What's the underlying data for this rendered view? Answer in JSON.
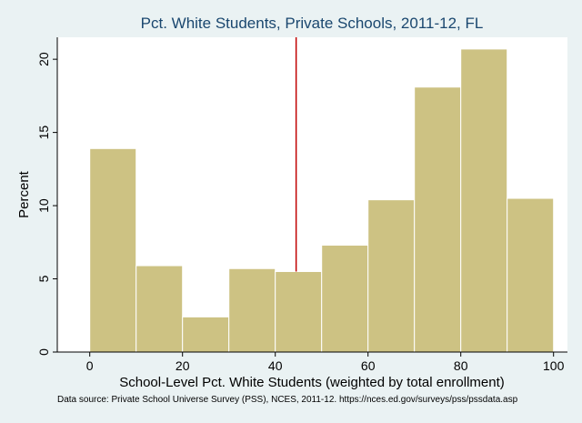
{
  "chart_data": {
    "type": "bar",
    "title": "Pct. White Students, Private Schools, 2011-12, FL",
    "xlabel": "School-Level Pct. White Students (weighted by total enrollment)",
    "ylabel": "Percent",
    "note": "Data source: Private School Universe Survey (PSS), NCES, 2011-12. https://nces.ed.gov/surveys/pss/pssdata.asp",
    "bin_edges": [
      0,
      10,
      20,
      30,
      40,
      50,
      60,
      70,
      80,
      90,
      100
    ],
    "values": [
      13.9,
      5.9,
      2.4,
      5.7,
      5.5,
      7.3,
      10.4,
      18.1,
      20.7,
      10.5
    ],
    "xlim": [
      -7,
      103
    ],
    "ylim": [
      0,
      21.5
    ],
    "xticks": [
      0,
      20,
      40,
      60,
      80,
      100
    ],
    "yticks": [
      0,
      5,
      10,
      15,
      20
    ],
    "reference_line_x": 44.5,
    "grid": false,
    "legend": false,
    "colors": {
      "bar_fill": "#cdc283",
      "bar_edge": "#ffffff",
      "reference_line": "#c00000",
      "title": "#1a476f",
      "background": "#eaf2f3",
      "plot_background": "#ffffff"
    }
  }
}
